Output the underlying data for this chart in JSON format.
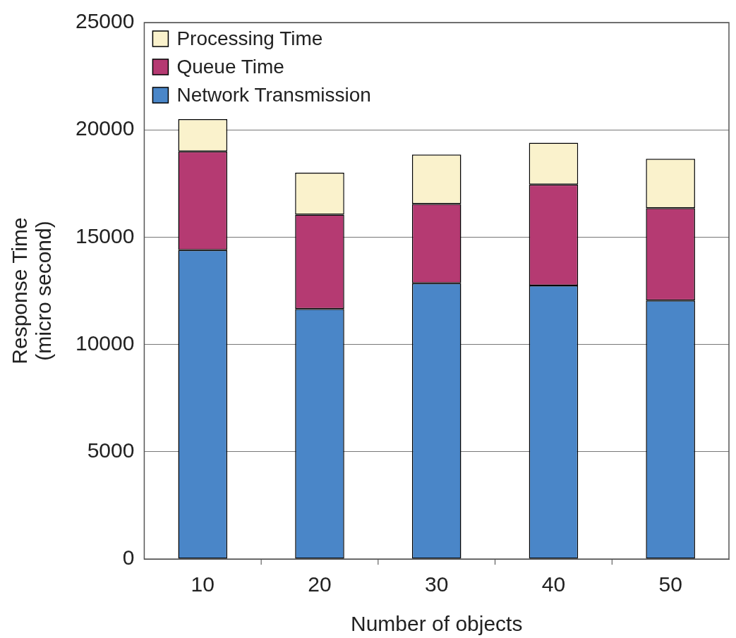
{
  "chart_data": {
    "type": "bar",
    "stacked": true,
    "xlabel": "Number of objects",
    "ylabel": "Response Time\n(micro second)",
    "categories": [
      "10",
      "20",
      "30",
      "40",
      "50"
    ],
    "series": [
      {
        "name": "Network Transmission",
        "color": "#4a86c8",
        "values": [
          14400,
          11650,
          12850,
          12750,
          12050
        ]
      },
      {
        "name": "Queue Time",
        "color": "#b53a72",
        "values": [
          4600,
          4400,
          3700,
          4700,
          4300
        ]
      },
      {
        "name": "Processing Time",
        "color": "#faf2cc",
        "values": [
          1500,
          1950,
          2300,
          1950,
          2300
        ]
      }
    ],
    "ylim": [
      0,
      25000
    ],
    "yticks": [
      0,
      5000,
      10000,
      15000,
      20000,
      25000
    ],
    "grid": "y",
    "legend": "top left"
  }
}
